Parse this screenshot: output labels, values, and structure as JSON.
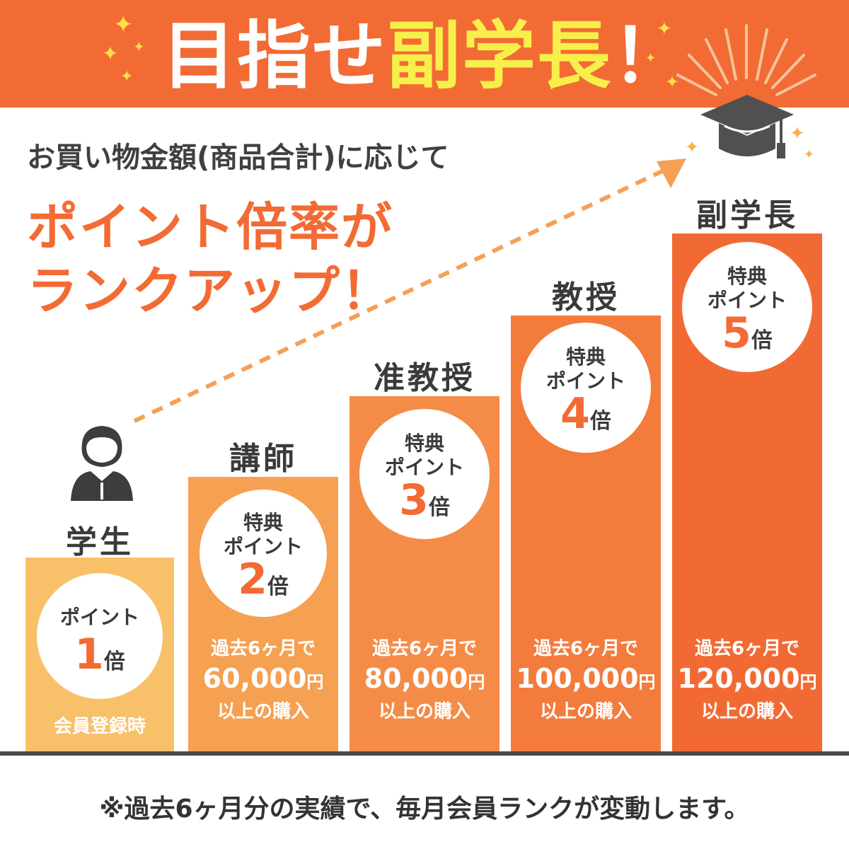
{
  "banner": {
    "title_white_1": "目指せ",
    "title_yellow": "副学長",
    "title_white_2": "！"
  },
  "intro": {
    "line": "お買い物金額(商品合計)に応じて",
    "headline_1": "ポイント倍率が",
    "headline_2": "ランクアップ！"
  },
  "colors": {
    "brand_orange": "#f36b34",
    "bar_student": "#f9c06a",
    "bar_lecturer": "#f6a052",
    "bar_assoc": "#f48c47",
    "bar_prof": "#f37b3c",
    "bar_vp": "#f26a33"
  },
  "icons": {
    "student": "student-avatar-icon",
    "cap": "graduation-cap-icon",
    "arrow": "dashed-arrow-icon"
  },
  "ranks": [
    {
      "name": "学生",
      "line1": "ポイント",
      "mult": "1",
      "bai": "倍",
      "note": "会員登録時"
    },
    {
      "name": "講師",
      "line0": "特典",
      "line1": "ポイント",
      "mult": "2",
      "bai": "倍",
      "req1": "過去6ヶ月で",
      "amount": "60,000",
      "yen": "円",
      "req3": "以上の購入"
    },
    {
      "name": "准教授",
      "line0": "特典",
      "line1": "ポイント",
      "mult": "3",
      "bai": "倍",
      "req1": "過去6ヶ月で",
      "amount": "80,000",
      "yen": "円",
      "req3": "以上の購入"
    },
    {
      "name": "教授",
      "line0": "特典",
      "line1": "ポイント",
      "mult": "4",
      "bai": "倍",
      "req1": "過去6ヶ月で",
      "amount": "100,000",
      "yen": "円",
      "req3": "以上の購入"
    },
    {
      "name": "副学長",
      "line0": "特典",
      "line1": "ポイント",
      "mult": "5",
      "bai": "倍",
      "req1": "過去6ヶ月で",
      "amount": "120,000",
      "yen": "円",
      "req3": "以上の購入"
    }
  ],
  "footnote": "※過去6ヶ月分の実績で、毎月会員ランクが変動します。"
}
